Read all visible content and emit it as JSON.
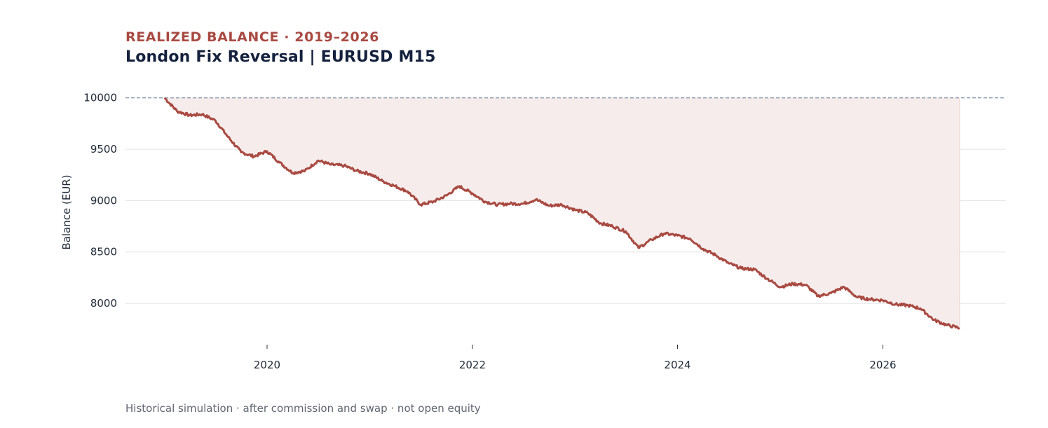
{
  "header": {
    "eyebrow": "REALIZED BALANCE · 2019–2026",
    "title": "London Fix Reversal | EURUSD M15"
  },
  "footnote": "Historical simulation · after commission and swap · not open equity",
  "colors": {
    "accent": "#a84a42",
    "fill": "#f6eceb",
    "title": "#14213d",
    "muted": "#5f6570",
    "grid": "#e2e2e2",
    "reference": "#5b7390"
  },
  "chart_data": {
    "type": "area",
    "title": "London Fix Reversal | EURUSD M15",
    "subtitle": "REALIZED BALANCE · 2019–2026",
    "xlabel": "",
    "ylabel": "Balance (EUR)",
    "xlim": [
      "2018-08-15",
      "2027-03-15"
    ],
    "ylim": [
      7680,
      10080
    ],
    "x_ticks": [
      "2020",
      "2022",
      "2024",
      "2026"
    ],
    "y_ticks": [
      8000,
      8500,
      9000,
      9500,
      10000
    ],
    "grid": "horizontal",
    "reference_line": {
      "value": 10000,
      "style": "dashed"
    },
    "series": [
      {
        "x": [
          "2019-01-01",
          "2019-02-15",
          "2019-04-01",
          "2019-05-15",
          "2019-07-01",
          "2019-08-15",
          "2019-10-01",
          "2019-11-15",
          "2020-01-01",
          "2020-02-15",
          "2020-04-01",
          "2020-05-15",
          "2020-07-01",
          "2020-08-15",
          "2020-10-01",
          "2020-11-15",
          "2021-01-01",
          "2021-02-15",
          "2021-04-01",
          "2021-05-15",
          "2021-07-01",
          "2021-08-15",
          "2021-10-01",
          "2021-11-15",
          "2022-01-01",
          "2022-02-15",
          "2022-04-01",
          "2022-05-15",
          "2022-07-01",
          "2022-08-15",
          "2022-10-01",
          "2022-11-15",
          "2023-01-01",
          "2023-02-15",
          "2023-04-01",
          "2023-05-15",
          "2023-07-01",
          "2023-08-15",
          "2023-10-01",
          "2023-11-15",
          "2024-01-01",
          "2024-02-15",
          "2024-04-01",
          "2024-05-15",
          "2024-07-01",
          "2024-08-15",
          "2024-10-01",
          "2024-11-15",
          "2025-01-01",
          "2025-02-15",
          "2025-04-01",
          "2025-05-15",
          "2025-07-01",
          "2025-08-15",
          "2025-10-01",
          "2025-11-15",
          "2026-01-01",
          "2026-02-15",
          "2026-04-01",
          "2026-05-15",
          "2026-07-01",
          "2026-08-15",
          "2026-10-01"
        ],
        "y": [
          10000,
          9870,
          9830,
          9840,
          9780,
          9620,
          9470,
          9430,
          9480,
          9370,
          9270,
          9290,
          9390,
          9350,
          9340,
          9290,
          9260,
          9190,
          9140,
          9090,
          8960,
          8990,
          9050,
          9140,
          9070,
          8990,
          8960,
          8970,
          8970,
          9010,
          8950,
          8960,
          8910,
          8880,
          8780,
          8750,
          8700,
          8540,
          8620,
          8680,
          8660,
          8630,
          8530,
          8470,
          8390,
          8340,
          8330,
          8240,
          8160,
          8190,
          8180,
          8070,
          8100,
          8160,
          8060,
          8040,
          8030,
          7990,
          7980,
          7950,
          7840,
          7790,
          7760
        ]
      }
    ]
  }
}
